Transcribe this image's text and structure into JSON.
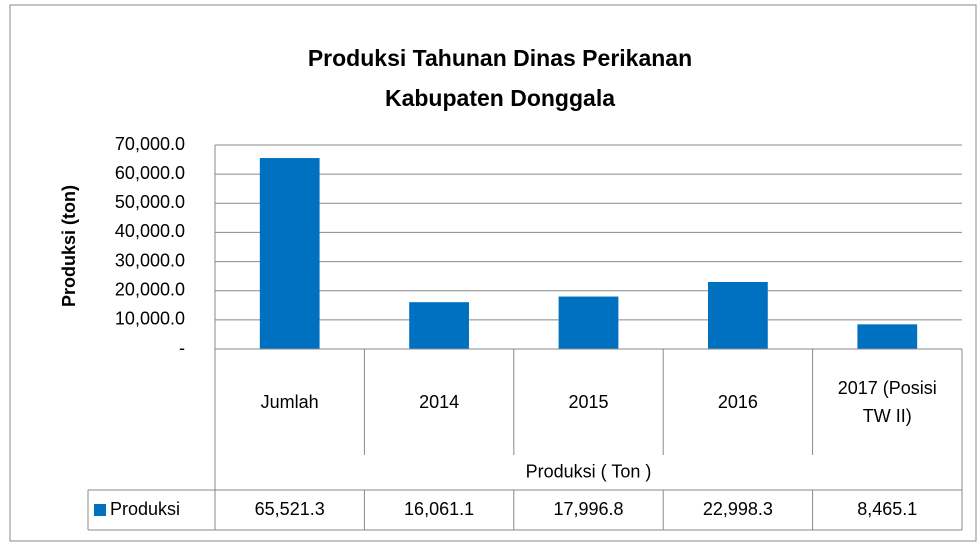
{
  "chart_data": {
    "type": "bar",
    "title": "Produksi Tahunan Dinas Perikanan Kabupaten Donggala",
    "y_label": "Produksi (ton)",
    "x_label": "Produksi ( Ton )",
    "categories": [
      "Jumlah",
      "2014",
      "2015",
      "2016",
      "2017 (Posisi TW II)"
    ],
    "series": [
      {
        "name": "Produksi",
        "color": "#0070c0",
        "values": [
          65521.3,
          16061.1,
          17996.8,
          22998.3,
          8465.1
        ],
        "value_labels": [
          "65,521.3",
          "16,061.1",
          "17,996.8",
          "22,998.3",
          "8,465.1"
        ]
      }
    ],
    "ylim": [
      0,
      70000
    ],
    "yticks": [
      {
        "value": 0,
        "label": "-"
      },
      {
        "value": 10000,
        "label": "10,000.0"
      },
      {
        "value": 20000,
        "label": "20,000.0"
      },
      {
        "value": 30000,
        "label": "30,000.0"
      },
      {
        "value": 40000,
        "label": "40,000.0"
      },
      {
        "value": 50000,
        "label": "50,000.0"
      },
      {
        "value": 60000,
        "label": "60,000.0"
      },
      {
        "value": 70000,
        "label": "70,000.0"
      }
    ],
    "grid": true,
    "data_table": true
  }
}
